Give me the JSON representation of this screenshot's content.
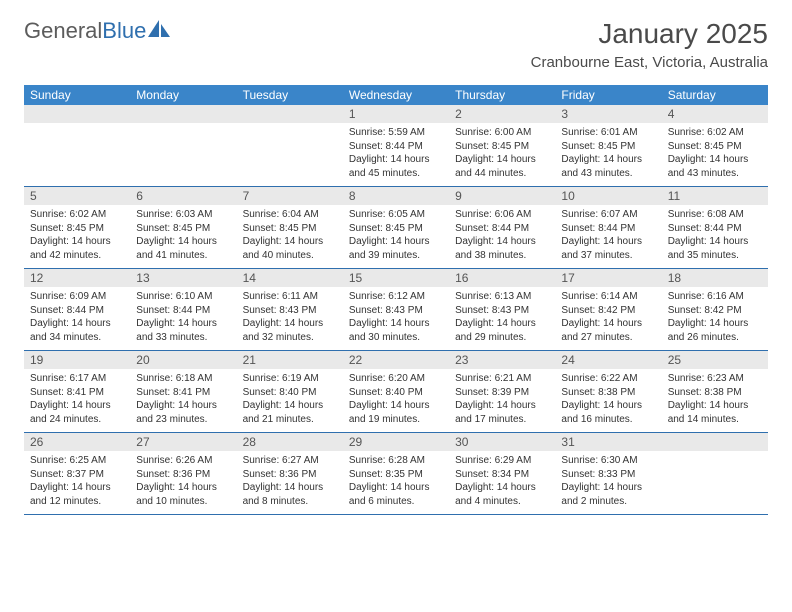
{
  "logo": {
    "text1": "General",
    "text2": "Blue"
  },
  "title": "January 2025",
  "subtitle": "Cranbourne East, Victoria, Australia",
  "colors": {
    "header_bg": "#3a85c9",
    "header_fg": "#ffffff",
    "daynum_bg": "#e9e9e9",
    "row_border": "#2f6fae",
    "logo_gray": "#5c5c5c",
    "logo_blue": "#2f6fae"
  },
  "daynames": [
    "Sunday",
    "Monday",
    "Tuesday",
    "Wednesday",
    "Thursday",
    "Friday",
    "Saturday"
  ],
  "weeks": [
    [
      null,
      null,
      null,
      {
        "d": "1",
        "sr": "5:59 AM",
        "ss": "8:44 PM",
        "dl": "14 hours and 45 minutes."
      },
      {
        "d": "2",
        "sr": "6:00 AM",
        "ss": "8:45 PM",
        "dl": "14 hours and 44 minutes."
      },
      {
        "d": "3",
        "sr": "6:01 AM",
        "ss": "8:45 PM",
        "dl": "14 hours and 43 minutes."
      },
      {
        "d": "4",
        "sr": "6:02 AM",
        "ss": "8:45 PM",
        "dl": "14 hours and 43 minutes."
      }
    ],
    [
      {
        "d": "5",
        "sr": "6:02 AM",
        "ss": "8:45 PM",
        "dl": "14 hours and 42 minutes."
      },
      {
        "d": "6",
        "sr": "6:03 AM",
        "ss": "8:45 PM",
        "dl": "14 hours and 41 minutes."
      },
      {
        "d": "7",
        "sr": "6:04 AM",
        "ss": "8:45 PM",
        "dl": "14 hours and 40 minutes."
      },
      {
        "d": "8",
        "sr": "6:05 AM",
        "ss": "8:45 PM",
        "dl": "14 hours and 39 minutes."
      },
      {
        "d": "9",
        "sr": "6:06 AM",
        "ss": "8:44 PM",
        "dl": "14 hours and 38 minutes."
      },
      {
        "d": "10",
        "sr": "6:07 AM",
        "ss": "8:44 PM",
        "dl": "14 hours and 37 minutes."
      },
      {
        "d": "11",
        "sr": "6:08 AM",
        "ss": "8:44 PM",
        "dl": "14 hours and 35 minutes."
      }
    ],
    [
      {
        "d": "12",
        "sr": "6:09 AM",
        "ss": "8:44 PM",
        "dl": "14 hours and 34 minutes."
      },
      {
        "d": "13",
        "sr": "6:10 AM",
        "ss": "8:44 PM",
        "dl": "14 hours and 33 minutes."
      },
      {
        "d": "14",
        "sr": "6:11 AM",
        "ss": "8:43 PM",
        "dl": "14 hours and 32 minutes."
      },
      {
        "d": "15",
        "sr": "6:12 AM",
        "ss": "8:43 PM",
        "dl": "14 hours and 30 minutes."
      },
      {
        "d": "16",
        "sr": "6:13 AM",
        "ss": "8:43 PM",
        "dl": "14 hours and 29 minutes."
      },
      {
        "d": "17",
        "sr": "6:14 AM",
        "ss": "8:42 PM",
        "dl": "14 hours and 27 minutes."
      },
      {
        "d": "18",
        "sr": "6:16 AM",
        "ss": "8:42 PM",
        "dl": "14 hours and 26 minutes."
      }
    ],
    [
      {
        "d": "19",
        "sr": "6:17 AM",
        "ss": "8:41 PM",
        "dl": "14 hours and 24 minutes."
      },
      {
        "d": "20",
        "sr": "6:18 AM",
        "ss": "8:41 PM",
        "dl": "14 hours and 23 minutes."
      },
      {
        "d": "21",
        "sr": "6:19 AM",
        "ss": "8:40 PM",
        "dl": "14 hours and 21 minutes."
      },
      {
        "d": "22",
        "sr": "6:20 AM",
        "ss": "8:40 PM",
        "dl": "14 hours and 19 minutes."
      },
      {
        "d": "23",
        "sr": "6:21 AM",
        "ss": "8:39 PM",
        "dl": "14 hours and 17 minutes."
      },
      {
        "d": "24",
        "sr": "6:22 AM",
        "ss": "8:38 PM",
        "dl": "14 hours and 16 minutes."
      },
      {
        "d": "25",
        "sr": "6:23 AM",
        "ss": "8:38 PM",
        "dl": "14 hours and 14 minutes."
      }
    ],
    [
      {
        "d": "26",
        "sr": "6:25 AM",
        "ss": "8:37 PM",
        "dl": "14 hours and 12 minutes."
      },
      {
        "d": "27",
        "sr": "6:26 AM",
        "ss": "8:36 PM",
        "dl": "14 hours and 10 minutes."
      },
      {
        "d": "28",
        "sr": "6:27 AM",
        "ss": "8:36 PM",
        "dl": "14 hours and 8 minutes."
      },
      {
        "d": "29",
        "sr": "6:28 AM",
        "ss": "8:35 PM",
        "dl": "14 hours and 6 minutes."
      },
      {
        "d": "30",
        "sr": "6:29 AM",
        "ss": "8:34 PM",
        "dl": "14 hours and 4 minutes."
      },
      {
        "d": "31",
        "sr": "6:30 AM",
        "ss": "8:33 PM",
        "dl": "14 hours and 2 minutes."
      },
      null
    ]
  ],
  "labels": {
    "sunrise": "Sunrise:",
    "sunset": "Sunset:",
    "daylight": "Daylight:"
  }
}
